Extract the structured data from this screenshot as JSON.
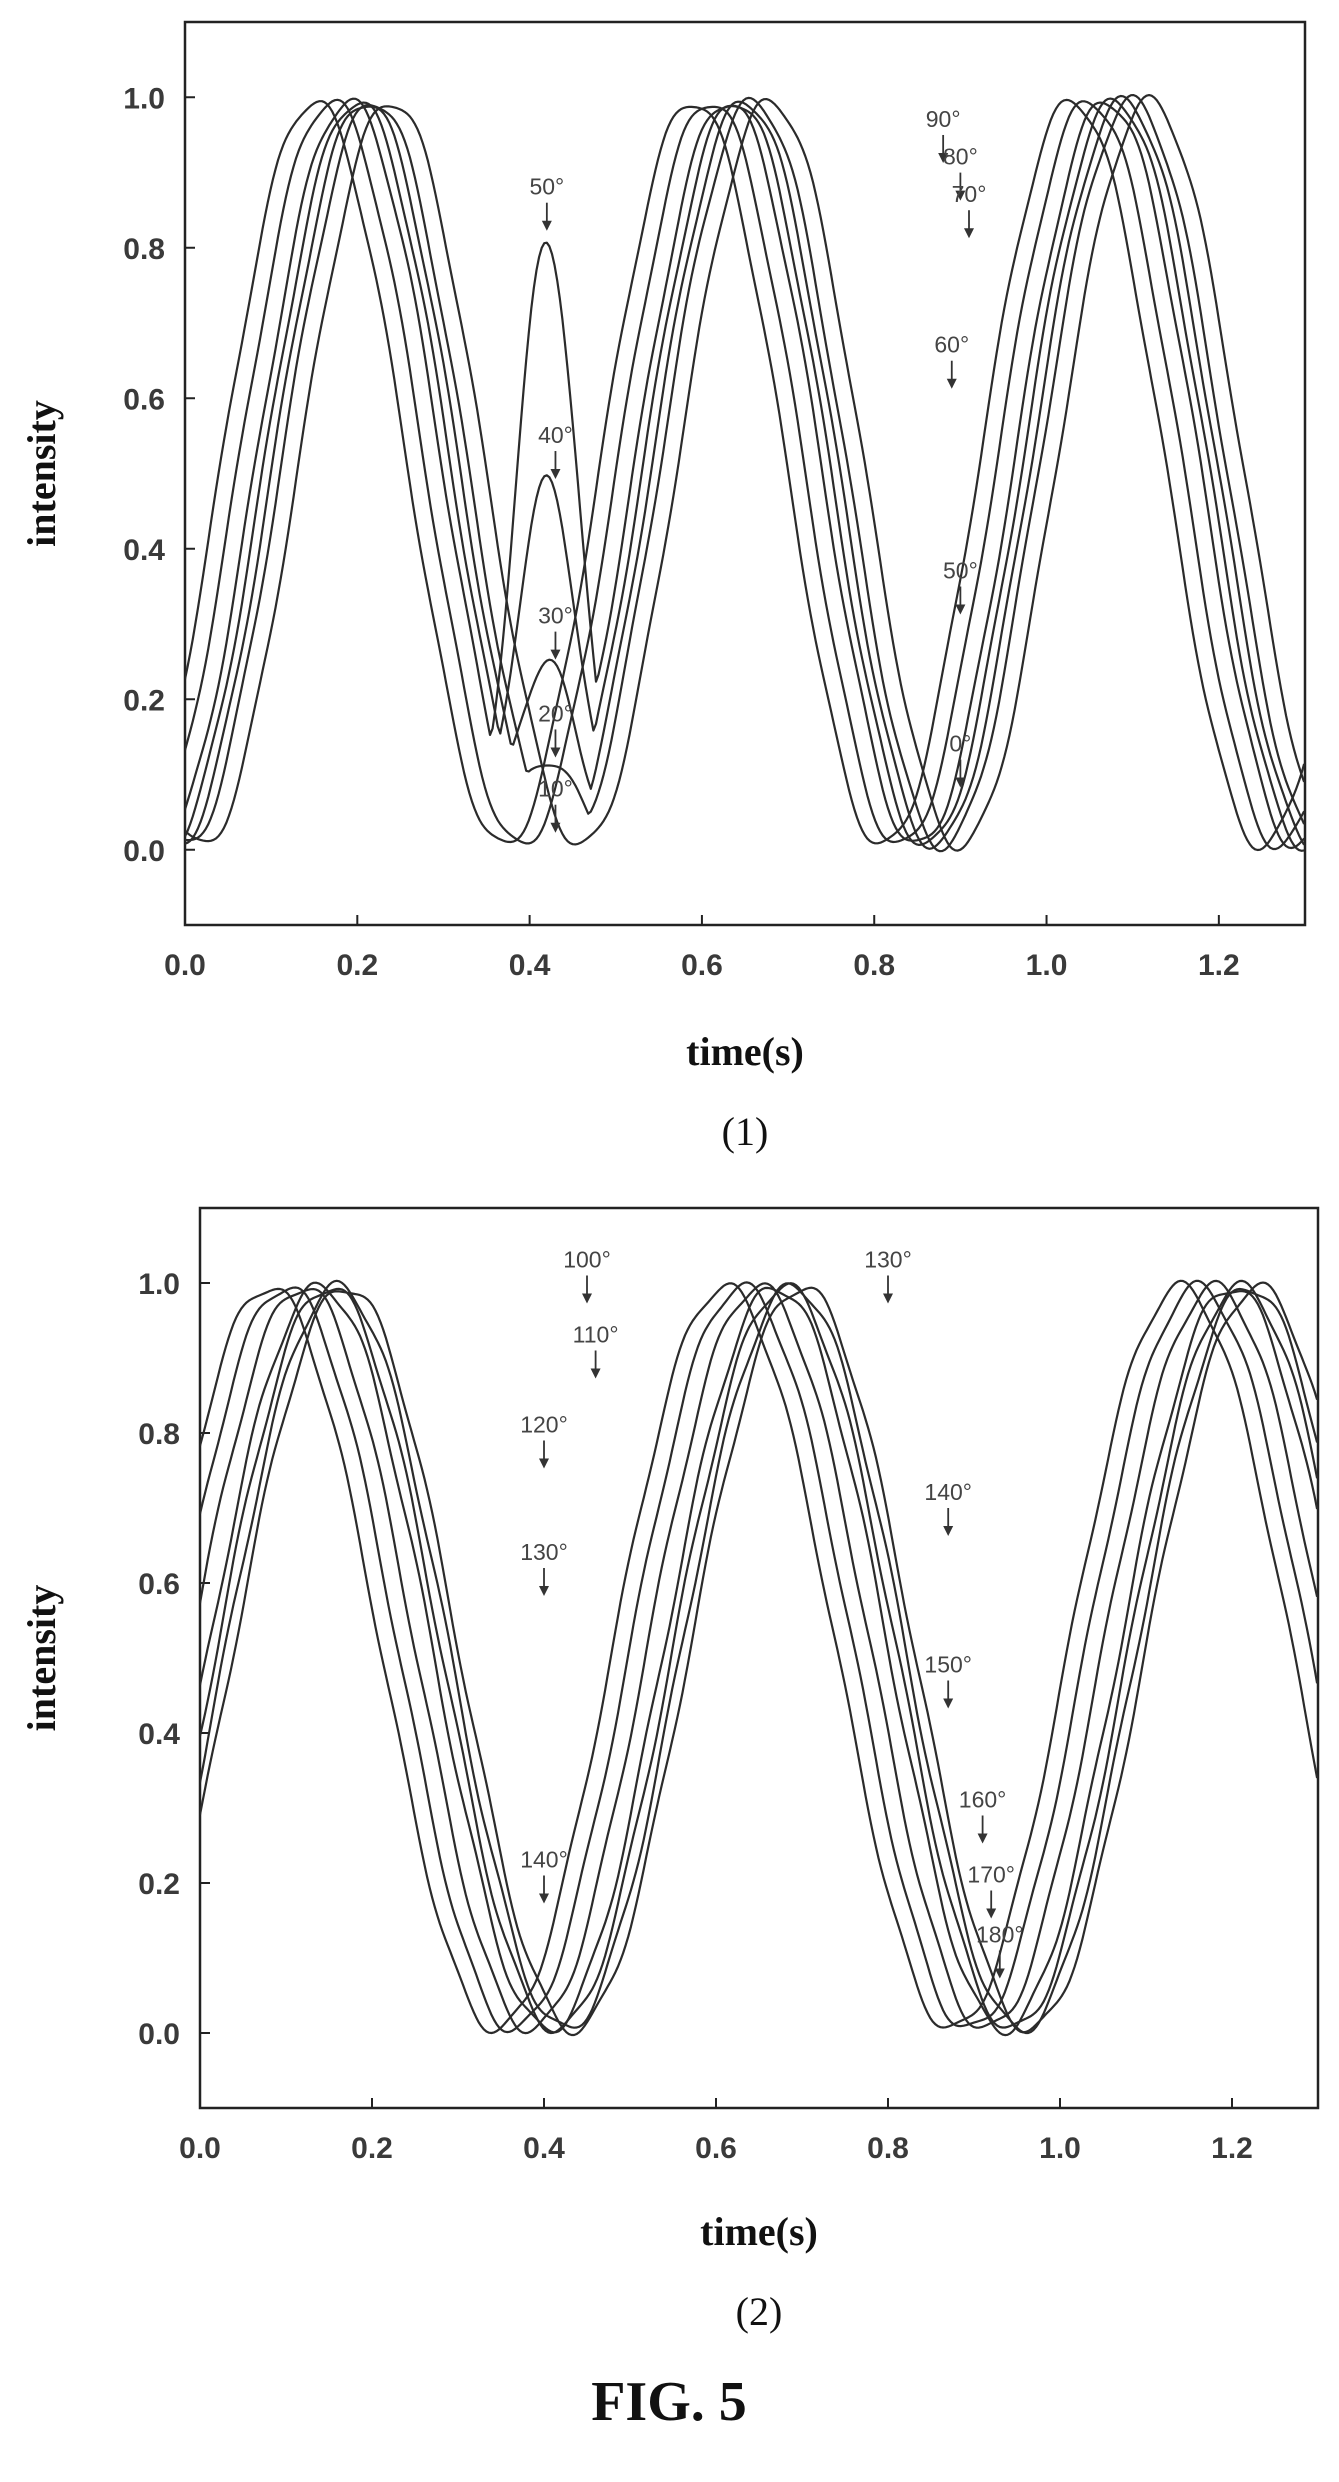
{
  "figure_title": "FIG. 5",
  "chart_data": [
    {
      "type": "line",
      "panel_label": "(1)",
      "xlabel": "time(s)",
      "ylabel": "intensity",
      "xlim": [
        0.0,
        1.3
      ],
      "ylim": [
        -0.1,
        1.1
      ],
      "xticks": [
        "0.0",
        "0.2",
        "0.4",
        "0.6",
        "0.8",
        "1.0",
        "1.2"
      ],
      "yticks": [
        "0.0",
        "0.2",
        "0.4",
        "0.6",
        "0.8",
        "1.0"
      ],
      "grid": false,
      "series": [
        {
          "label_id": "10",
          "phase": 0.05,
          "trough": 0.0
        },
        {
          "label_id": "20",
          "phase": 0.03,
          "trough": 0.12
        },
        {
          "label_id": "30",
          "phase": 0.02,
          "trough": 0.25
        },
        {
          "label_id": "40",
          "phase": 0.01,
          "trough": 0.49
        },
        {
          "label_id": "50",
          "phase": 0.0,
          "trough": 0.81
        },
        {
          "label_id": "0",
          "phase": -0.02,
          "trough": 0.0
        },
        {
          "label_id": "60",
          "phase": -0.04,
          "trough": 0.0
        }
      ],
      "annotations": [
        {
          "text": "50°",
          "x": 0.42,
          "y": 0.82
        },
        {
          "text": "40°",
          "x": 0.43,
          "y": 0.49
        },
        {
          "text": "30°",
          "x": 0.43,
          "y": 0.25
        },
        {
          "text": "20°",
          "x": 0.43,
          "y": 0.12
        },
        {
          "text": "10°",
          "x": 0.43,
          "y": 0.02
        },
        {
          "text": "90°",
          "x": 0.88,
          "y": 0.91
        },
        {
          "text": "80°",
          "x": 0.9,
          "y": 0.86
        },
        {
          "text": "70°",
          "x": 0.91,
          "y": 0.81
        },
        {
          "text": "60°",
          "x": 0.89,
          "y": 0.61
        },
        {
          "text": "50°",
          "x": 0.9,
          "y": 0.31
        },
        {
          "text": "0°",
          "x": 0.9,
          "y": 0.08
        }
      ]
    },
    {
      "type": "line",
      "panel_label": "(2)",
      "xlabel": "time(s)",
      "ylabel": "intensity",
      "xlim": [
        0.0,
        1.3
      ],
      "ylim": [
        -0.1,
        1.1
      ],
      "xticks": [
        "0.0",
        "0.2",
        "0.4",
        "0.6",
        "0.8",
        "1.0",
        "1.2"
      ],
      "yticks": [
        "0.0",
        "0.2",
        "0.4",
        "0.6",
        "0.8",
        "1.0"
      ],
      "grid": false,
      "series": [
        {
          "label_id": "100",
          "phase": 0.0,
          "peak": 0.97
        },
        {
          "label_id": "110",
          "phase": 0.02,
          "peak": 0.88
        },
        {
          "label_id": "120",
          "phase": 0.03,
          "peak": 0.75
        },
        {
          "label_id": "130",
          "phase": 0.04,
          "peak": 0.58
        },
        {
          "label_id": "140",
          "phase": 0.05,
          "peak": 0.17
        },
        {
          "label_id": "150",
          "phase": -0.02,
          "peak": 0.97
        },
        {
          "label_id": "160",
          "phase": -0.04,
          "peak": 0.97
        }
      ],
      "annotations": [
        {
          "text": "100°",
          "x": 0.45,
          "y": 0.97
        },
        {
          "text": "110°",
          "x": 0.46,
          "y": 0.87
        },
        {
          "text": "120°",
          "x": 0.4,
          "y": 0.75
        },
        {
          "text": "130°",
          "x": 0.4,
          "y": 0.58
        },
        {
          "text": "140°",
          "x": 0.4,
          "y": 0.17
        },
        {
          "text": "130°",
          "x": 0.8,
          "y": 0.97
        },
        {
          "text": "140°",
          "x": 0.87,
          "y": 0.66
        },
        {
          "text": "150°",
          "x": 0.87,
          "y": 0.43
        },
        {
          "text": "160°",
          "x": 0.91,
          "y": 0.25
        },
        {
          "text": "170°",
          "x": 0.92,
          "y": 0.15
        },
        {
          "text": "180°",
          "x": 0.93,
          "y": 0.07
        }
      ]
    }
  ]
}
